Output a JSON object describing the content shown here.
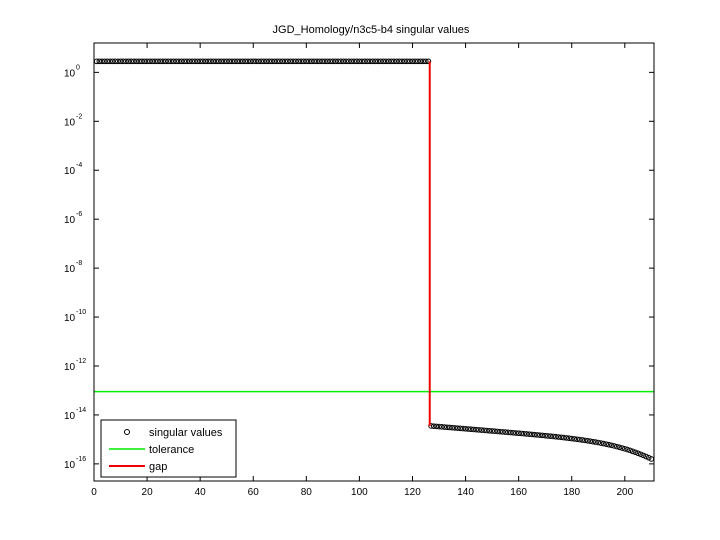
{
  "chart_data": {
    "type": "scatter",
    "title": "JGD_Homology/n3c5-b4 singular values",
    "xlabel": "",
    "ylabel": "",
    "x_scale": "linear",
    "y_scale": "log",
    "xlim": [
      0,
      211
    ],
    "ylim_log10": [
      -16.7,
      1.2
    ],
    "grid": false,
    "x_ticks": [
      0,
      20,
      40,
      60,
      80,
      100,
      120,
      140,
      160,
      180,
      200
    ],
    "x_tick_labels": [
      "0",
      "20",
      "40",
      "60",
      "80",
      "100",
      "120",
      "140",
      "160",
      "180",
      "200"
    ],
    "y_ticks": [
      {
        "base": "10",
        "exp": "0",
        "log10": 0
      },
      {
        "base": "10",
        "exp": "-2",
        "log10": -2
      },
      {
        "base": "10",
        "exp": "-4",
        "log10": -4
      },
      {
        "base": "10",
        "exp": "-6",
        "log10": -6
      },
      {
        "base": "10",
        "exp": "-8",
        "log10": -8
      },
      {
        "base": "10",
        "exp": "-10",
        "log10": -10
      },
      {
        "base": "10",
        "exp": "-12",
        "log10": -12
      },
      {
        "base": "10",
        "exp": "-14",
        "log10": -14
      },
      {
        "base": "10",
        "exp": "-16",
        "log10": -16
      }
    ],
    "legend": {
      "placement": "bottom-left",
      "entries": [
        "singular values",
        "tolerance",
        "gap"
      ]
    },
    "colors": {
      "singular_values": "#000000",
      "tolerance": "#00ee00",
      "gap": "#ee0000"
    },
    "series": [
      {
        "name": "singular values",
        "type": "scatter",
        "segments": [
          {
            "x_from": 1,
            "x_to": 126,
            "log10_from": 0.45,
            "log10_to": 0.45
          },
          {
            "x_from": 127,
            "x_to": 210,
            "log10_from": -14.45,
            "log10_to": -15.8
          }
        ]
      },
      {
        "name": "tolerance",
        "type": "hline",
        "log10_value": -13.05
      },
      {
        "name": "gap",
        "type": "vline",
        "x": 126.5,
        "log10_from": 0.45,
        "log10_to": -14.45
      }
    ]
  }
}
